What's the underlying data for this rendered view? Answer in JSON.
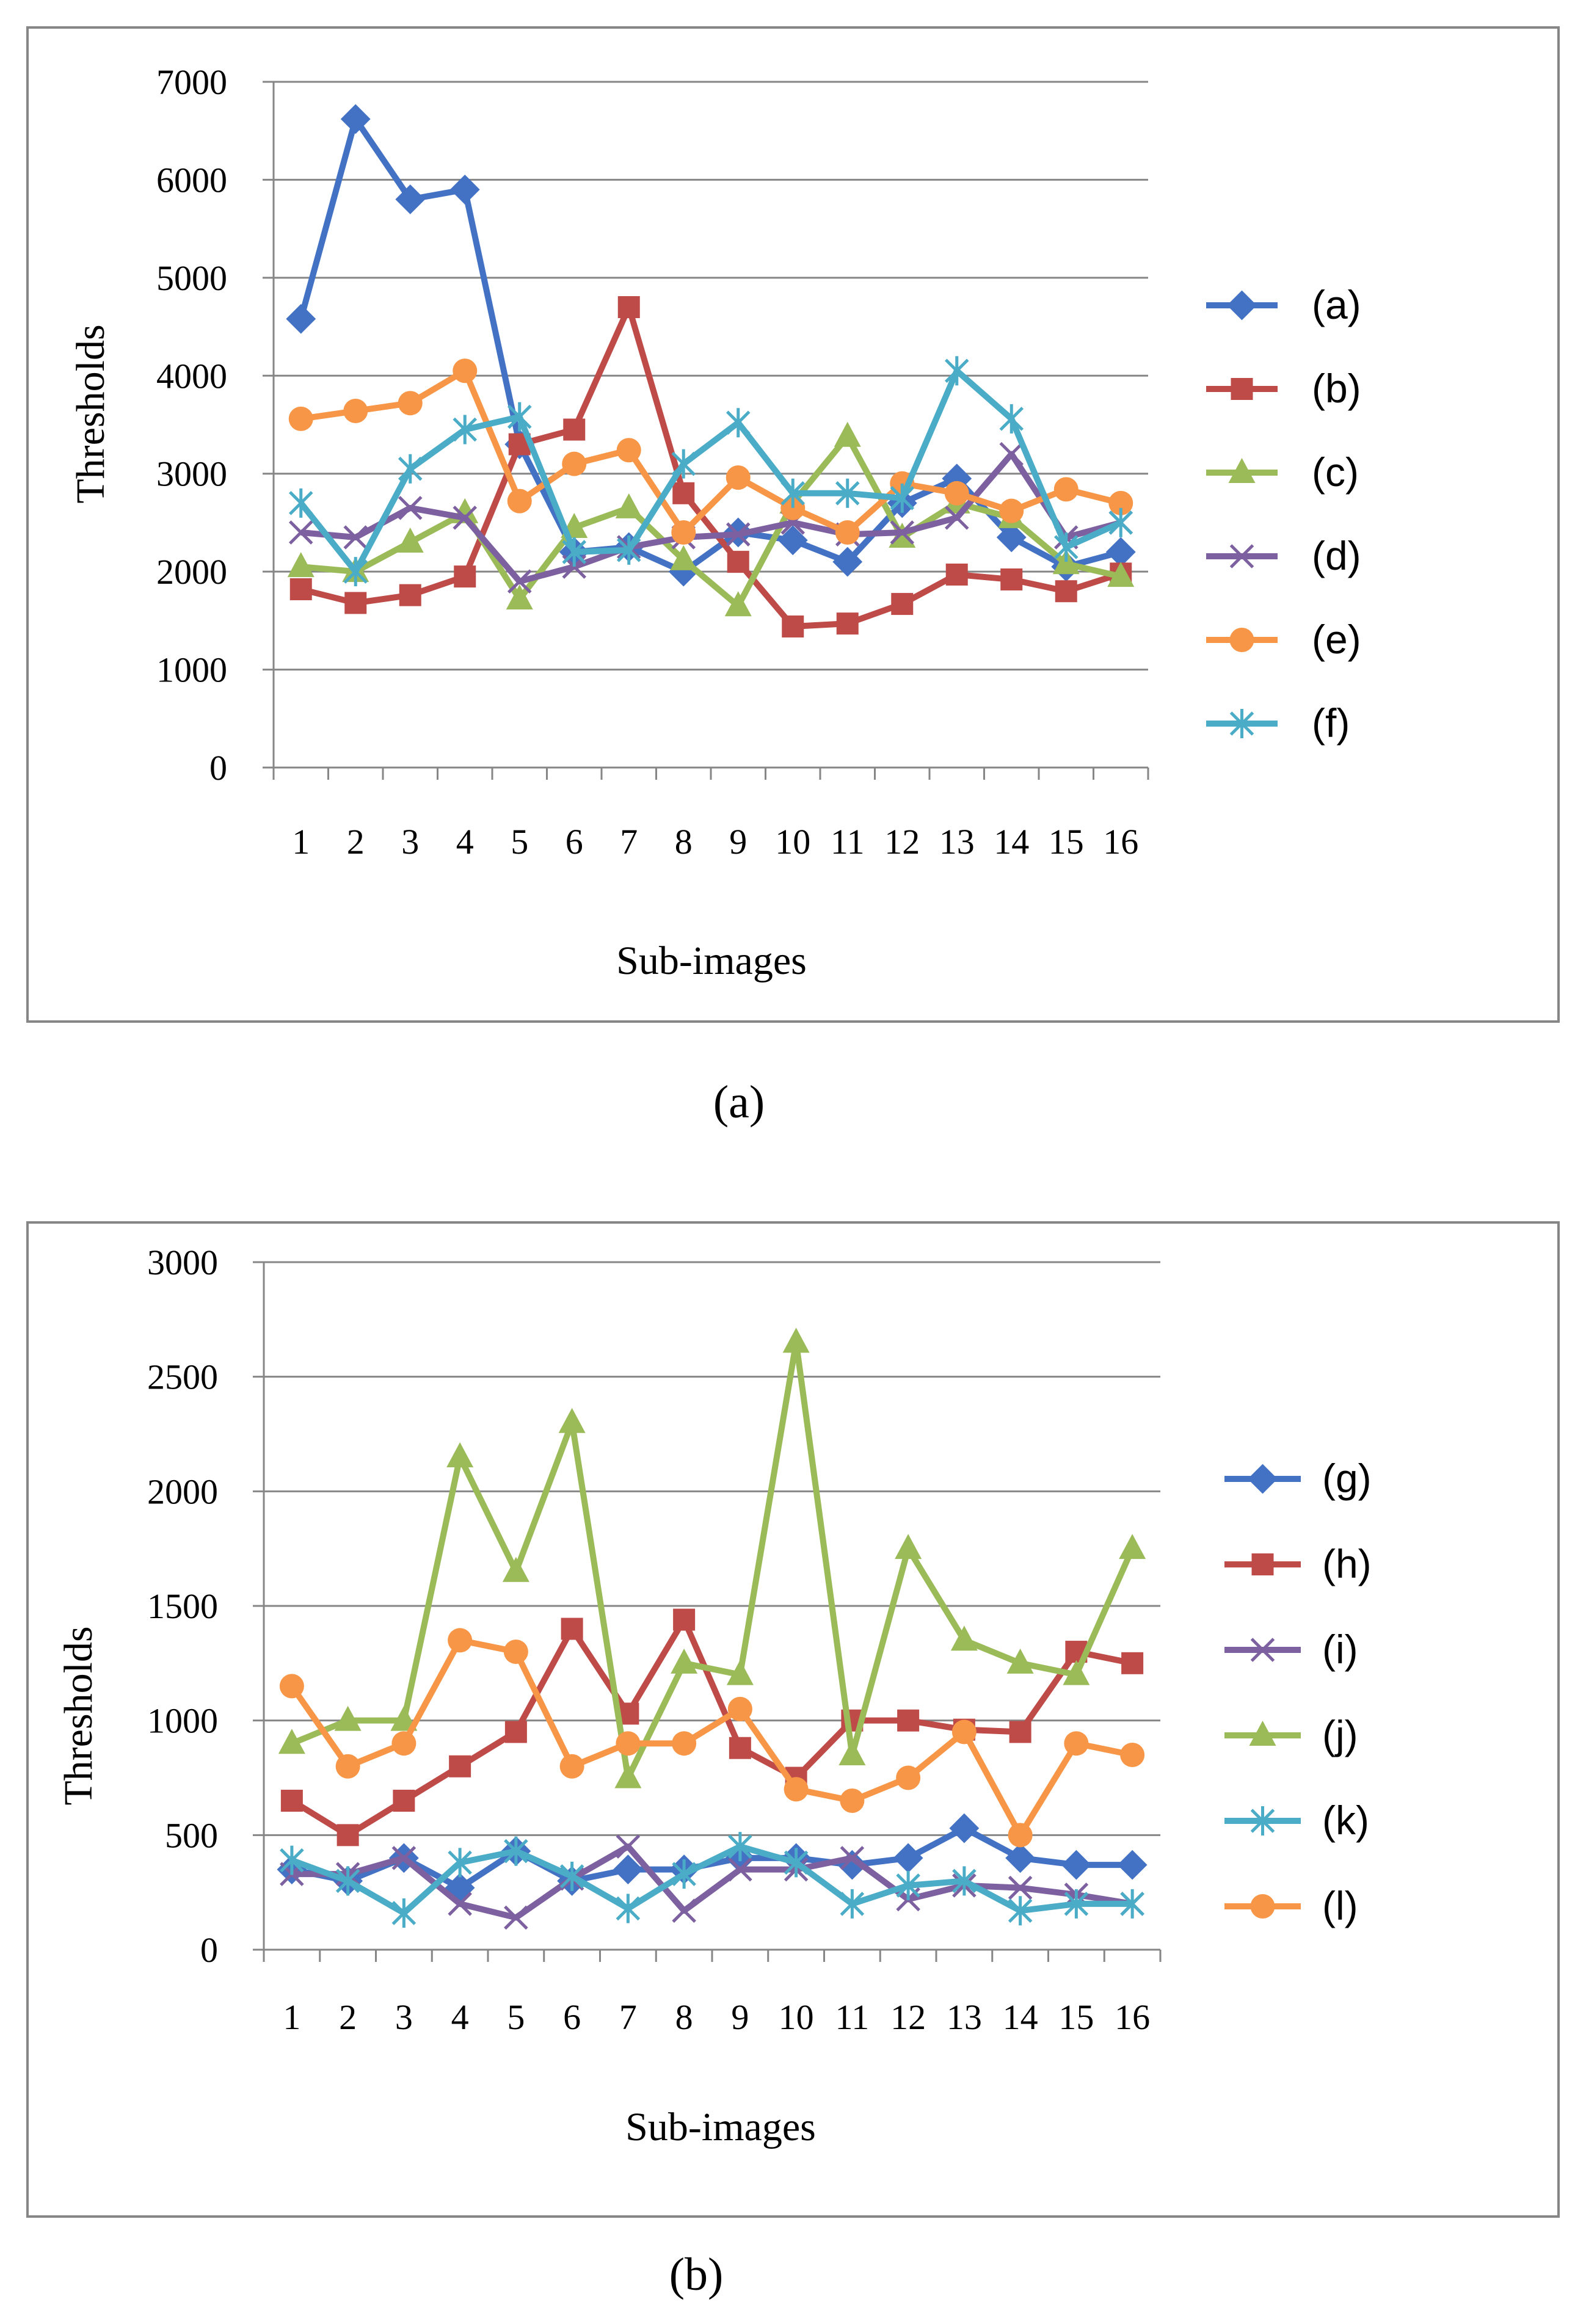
{
  "chart_data": [
    {
      "type": "line",
      "caption": "(a)",
      "xlabel": "Sub-images",
      "ylabel": "Thresholds",
      "ylim": [
        0,
        7000
      ],
      "yticks": [
        0,
        1000,
        2000,
        3000,
        4000,
        5000,
        6000,
        7000
      ],
      "categories": [
        "1",
        "2",
        "3",
        "4",
        "5",
        "6",
        "7",
        "8",
        "9",
        "10",
        "11",
        "12",
        "13",
        "14",
        "15",
        "16"
      ],
      "grid": true,
      "legend_position": "right",
      "series": [
        {
          "name": "(a)",
          "color": "#4372c4",
          "marker": "diamond",
          "values": [
            4580,
            6620,
            5800,
            5900,
            3300,
            2200,
            2250,
            2000,
            2400,
            2320,
            2100,
            2700,
            2950,
            2350,
            2050,
            2200
          ]
        },
        {
          "name": "(b)",
          "color": "#be4b48",
          "marker": "square",
          "values": [
            1820,
            1680,
            1760,
            1950,
            3300,
            3450,
            4700,
            2800,
            2100,
            1440,
            1470,
            1670,
            1970,
            1920,
            1800,
            1980
          ]
        },
        {
          "name": "(c)",
          "color": "#9bbb59",
          "marker": "triangle",
          "values": [
            2050,
            2000,
            2300,
            2600,
            1720,
            2450,
            2650,
            2120,
            1650,
            2700,
            3380,
            2350,
            2700,
            2550,
            2080,
            1950
          ]
        },
        {
          "name": "(d)",
          "color": "#7d60a0",
          "marker": "x",
          "values": [
            2400,
            2350,
            2650,
            2550,
            1900,
            2050,
            2250,
            2350,
            2380,
            2500,
            2380,
            2400,
            2550,
            3200,
            2350,
            2500
          ]
        },
        {
          "name": "(e)",
          "color": "#f79646",
          "marker": "circle",
          "values": [
            3560,
            3640,
            3720,
            4050,
            2720,
            3100,
            3240,
            2400,
            2960,
            2650,
            2400,
            2900,
            2800,
            2620,
            2840,
            2700
          ]
        },
        {
          "name": "(f)",
          "color": "#4aacc6",
          "marker": "star",
          "values": [
            2700,
            2000,
            3050,
            3450,
            3580,
            2200,
            2220,
            3100,
            3520,
            2800,
            2800,
            2750,
            4050,
            3560,
            2250,
            2500
          ]
        }
      ]
    },
    {
      "type": "line",
      "caption": "(b)",
      "xlabel": "Sub-images",
      "ylabel": "Thresholds",
      "ylim": [
        0,
        3000
      ],
      "yticks": [
        0,
        500,
        1000,
        1500,
        2000,
        2500,
        3000
      ],
      "categories": [
        "1",
        "2",
        "3",
        "4",
        "5",
        "6",
        "7",
        "8",
        "9",
        "10",
        "11",
        "12",
        "13",
        "14",
        "15",
        "16"
      ],
      "grid": true,
      "legend_position": "right",
      "series": [
        {
          "name": "(g)",
          "color": "#4372c4",
          "marker": "diamond",
          "values": [
            350,
            300,
            400,
            270,
            430,
            300,
            350,
            350,
            400,
            400,
            370,
            400,
            530,
            400,
            370,
            370
          ]
        },
        {
          "name": "(h)",
          "color": "#be4b48",
          "marker": "square",
          "values": [
            650,
            500,
            650,
            800,
            950,
            1400,
            1030,
            1440,
            880,
            750,
            1000,
            1000,
            960,
            950,
            1300,
            1250
          ]
        },
        {
          "name": "(i)",
          "color": "#7d60a0",
          "marker": "x",
          "values": [
            330,
            330,
            400,
            200,
            140,
            310,
            450,
            170,
            350,
            350,
            400,
            220,
            280,
            270,
            240,
            200
          ]
        },
        {
          "name": "(j)",
          "color": "#9bbb59",
          "marker": "triangle",
          "values": [
            900,
            1000,
            1000,
            2150,
            1650,
            2300,
            750,
            1250,
            1200,
            2650,
            850,
            1750,
            1350,
            1250,
            1200,
            1750
          ]
        },
        {
          "name": "(k)",
          "color": "#4aacc6",
          "marker": "star",
          "values": [
            390,
            300,
            160,
            380,
            430,
            320,
            180,
            330,
            450,
            380,
            200,
            280,
            300,
            170,
            200,
            200
          ]
        },
        {
          "name": "(l)",
          "color": "#f79646",
          "marker": "circle",
          "values": [
            1150,
            800,
            900,
            1350,
            1300,
            800,
            900,
            900,
            1050,
            700,
            650,
            750,
            950,
            500,
            900,
            850
          ]
        }
      ]
    }
  ]
}
